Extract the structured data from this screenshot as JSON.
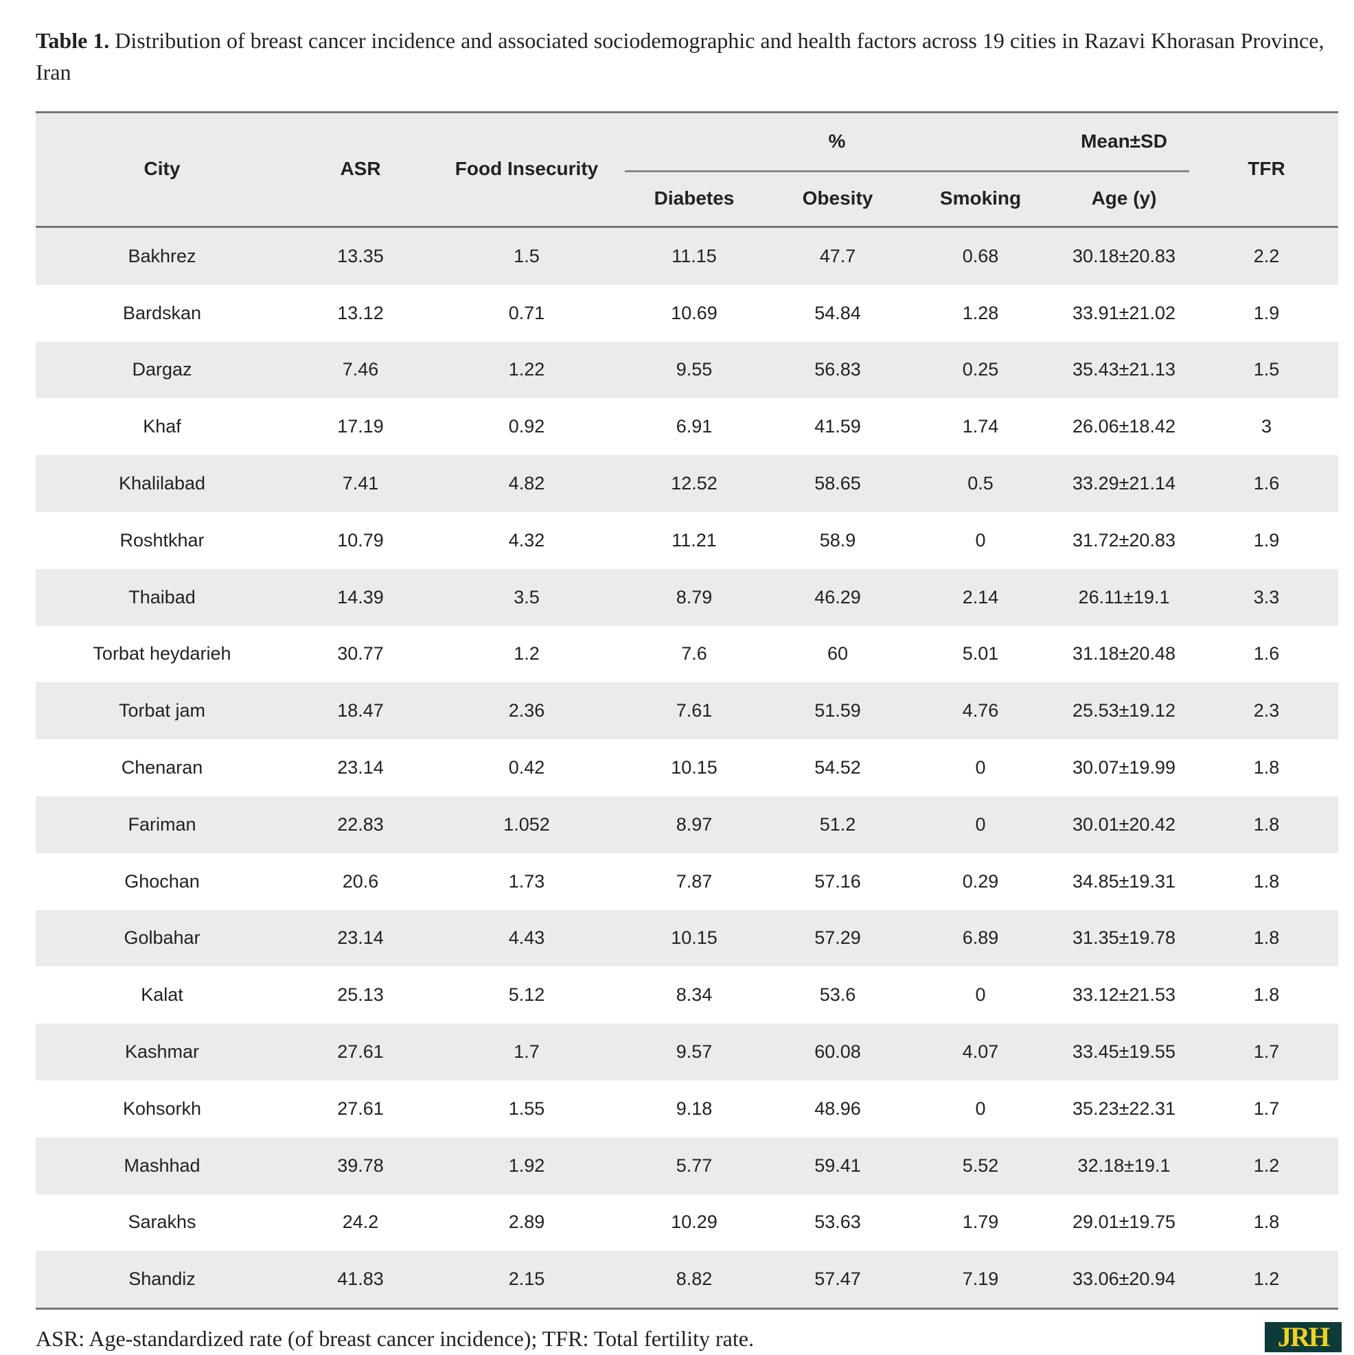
{
  "caption": {
    "label": "Table 1.",
    "text": "Distribution of breast cancer incidence and associated sociodemographic and health factors across 19 cities in Razavi Khorasan Province, Iran"
  },
  "headers": {
    "city": "City",
    "asr": "ASR",
    "food": "Food Insecurity",
    "percent": "%",
    "meansd": "Mean±SD",
    "tfr": "TFR",
    "diabetes": "Diabetes",
    "obesity": "Obesity",
    "smoking": "Smoking",
    "age": "Age (y)"
  },
  "rows": [
    [
      "Bakhrez",
      "13.35",
      "1.5",
      "11.15",
      "47.7",
      "0.68",
      "30.18±20.83",
      "2.2"
    ],
    [
      "Bardskan",
      "13.12",
      "0.71",
      "10.69",
      "54.84",
      "1.28",
      "33.91±21.02",
      "1.9"
    ],
    [
      "Dargaz",
      "7.46",
      "1.22",
      "9.55",
      "56.83",
      "0.25",
      "35.43±21.13",
      "1.5"
    ],
    [
      "Khaf",
      "17.19",
      "0.92",
      "6.91",
      "41.59",
      "1.74",
      "26.06±18.42",
      "3"
    ],
    [
      "Khalilabad",
      "7.41",
      "4.82",
      "12.52",
      "58.65",
      "0.5",
      "33.29±21.14",
      "1.6"
    ],
    [
      "Roshtkhar",
      "10.79",
      "4.32",
      "11.21",
      "58.9",
      "0",
      "31.72±20.83",
      "1.9"
    ],
    [
      "Thaibad",
      "14.39",
      "3.5",
      "8.79",
      "46.29",
      "2.14",
      "26.11±19.1",
      "3.3"
    ],
    [
      "Torbat heydarieh",
      "30.77",
      "1.2",
      "7.6",
      "60",
      "5.01",
      "31.18±20.48",
      "1.6"
    ],
    [
      "Torbat jam",
      "18.47",
      "2.36",
      "7.61",
      "51.59",
      "4.76",
      "25.53±19.12",
      "2.3"
    ],
    [
      "Chenaran",
      "23.14",
      "0.42",
      "10.15",
      "54.52",
      "0",
      "30.07±19.99",
      "1.8"
    ],
    [
      "Fariman",
      "22.83",
      "1.052",
      "8.97",
      "51.2",
      "0",
      "30.01±20.42",
      "1.8"
    ],
    [
      "Ghochan",
      "20.6",
      "1.73",
      "7.87",
      "57.16",
      "0.29",
      "34.85±19.31",
      "1.8"
    ],
    [
      "Golbahar",
      "23.14",
      "4.43",
      "10.15",
      "57.29",
      "6.89",
      "31.35±19.78",
      "1.8"
    ],
    [
      "Kalat",
      "25.13",
      "5.12",
      "8.34",
      "53.6",
      "0",
      "33.12±21.53",
      "1.8"
    ],
    [
      "Kashmar",
      "27.61",
      "1.7",
      "9.57",
      "60.08",
      "4.07",
      "33.45±19.55",
      "1.7"
    ],
    [
      "Kohsorkh",
      "27.61",
      "1.55",
      "9.18",
      "48.96",
      "0",
      "35.23±22.31",
      "1.7"
    ],
    [
      "Mashhad",
      "39.78",
      "1.92",
      "5.77",
      "59.41",
      "5.52",
      "32.18±19.1",
      "1.2"
    ],
    [
      "Sarakhs",
      "24.2",
      "2.89",
      "10.29",
      "53.63",
      "1.79",
      "29.01±19.75",
      "1.8"
    ],
    [
      "Shandiz",
      "41.83",
      "2.15",
      "8.82",
      "57.47",
      "7.19",
      "33.06±20.94",
      "1.2"
    ]
  ],
  "footnote": "ASR: Age-standardized rate (of breast cancer incidence); TFR: Total fertility rate.",
  "logo": "JRH"
}
